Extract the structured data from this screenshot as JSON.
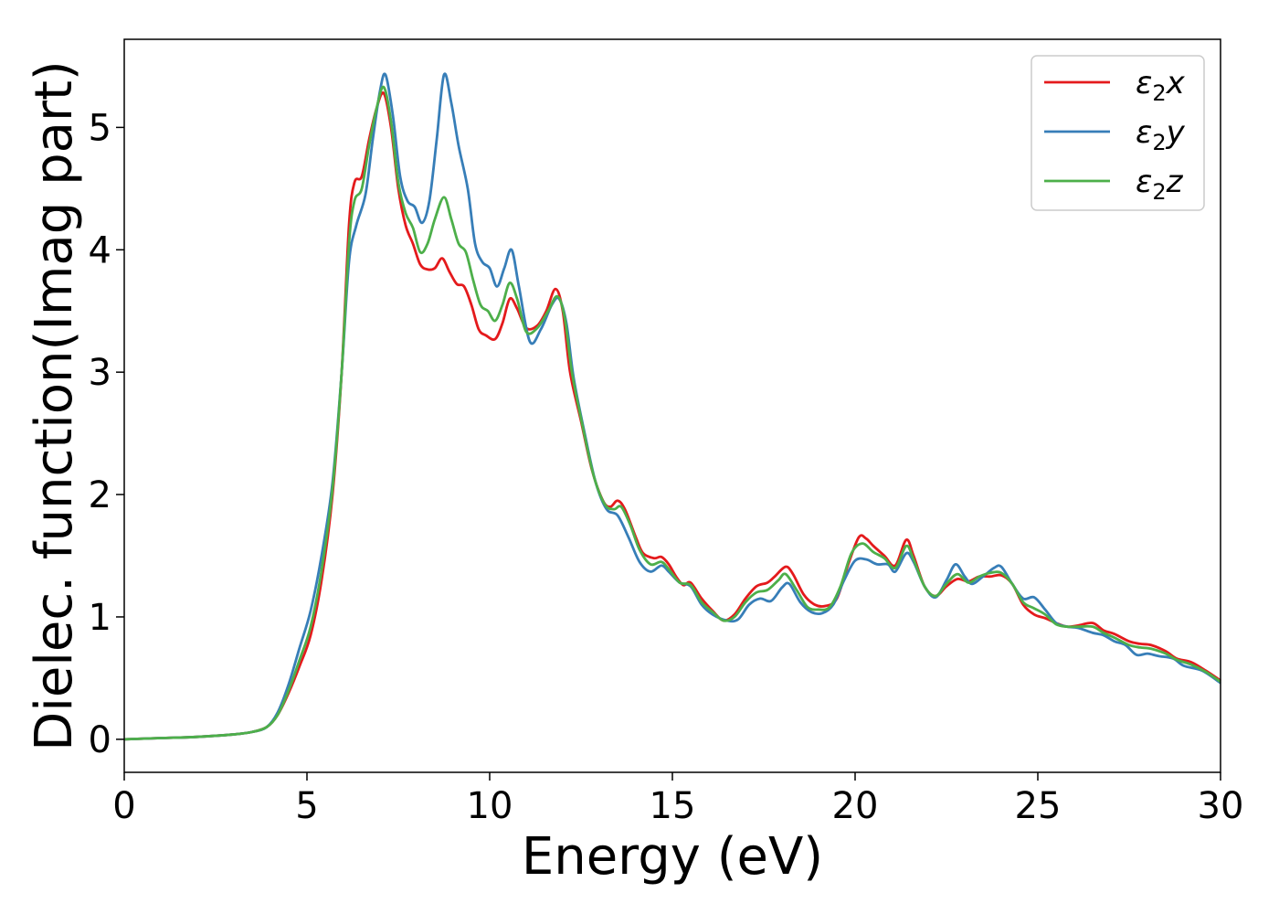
{
  "chart_data": {
    "type": "line",
    "xlabel": "Energy (eV)",
    "ylabel": "Dielec. function(Imag part)",
    "xlim": [
      0,
      30
    ],
    "ylim": [
      -0.27,
      5.72
    ],
    "xticks": [
      0,
      5,
      10,
      15,
      20,
      25,
      30
    ],
    "yticks": [
      0,
      1,
      2,
      3,
      4,
      5
    ],
    "grid": false,
    "legend_position": "top-right",
    "series": [
      {
        "name": "ε2x",
        "symbol": "ε",
        "sub": "2",
        "suffix": "x",
        "color": "#e41a1c",
        "points": [
          [
            0,
            0.0
          ],
          [
            1,
            0.01
          ],
          [
            2,
            0.02
          ],
          [
            3,
            0.04
          ],
          [
            3.5,
            0.06
          ],
          [
            3.9,
            0.1
          ],
          [
            4.2,
            0.2
          ],
          [
            4.5,
            0.38
          ],
          [
            4.8,
            0.6
          ],
          [
            5.1,
            0.85
          ],
          [
            5.4,
            1.3
          ],
          [
            5.7,
            2.0
          ],
          [
            5.95,
            3.0
          ],
          [
            6.15,
            4.2
          ],
          [
            6.3,
            4.55
          ],
          [
            6.5,
            4.6
          ],
          [
            6.7,
            4.9
          ],
          [
            6.9,
            5.15
          ],
          [
            7.1,
            5.28
          ],
          [
            7.3,
            5.0
          ],
          [
            7.5,
            4.5
          ],
          [
            7.7,
            4.2
          ],
          [
            7.9,
            4.05
          ],
          [
            8.1,
            3.88
          ],
          [
            8.3,
            3.84
          ],
          [
            8.5,
            3.85
          ],
          [
            8.7,
            3.93
          ],
          [
            8.9,
            3.82
          ],
          [
            9.1,
            3.72
          ],
          [
            9.3,
            3.7
          ],
          [
            9.5,
            3.55
          ],
          [
            9.7,
            3.35
          ],
          [
            9.9,
            3.3
          ],
          [
            10.15,
            3.27
          ],
          [
            10.35,
            3.4
          ],
          [
            10.55,
            3.6
          ],
          [
            10.75,
            3.52
          ],
          [
            11.0,
            3.36
          ],
          [
            11.3,
            3.38
          ],
          [
            11.55,
            3.5
          ],
          [
            11.8,
            3.68
          ],
          [
            12.0,
            3.5
          ],
          [
            12.2,
            3.0
          ],
          [
            12.5,
            2.6
          ],
          [
            12.8,
            2.2
          ],
          [
            13.1,
            1.95
          ],
          [
            13.3,
            1.9
          ],
          [
            13.5,
            1.95
          ],
          [
            13.7,
            1.88
          ],
          [
            14.0,
            1.65
          ],
          [
            14.2,
            1.52
          ],
          [
            14.5,
            1.48
          ],
          [
            14.7,
            1.49
          ],
          [
            14.9,
            1.43
          ],
          [
            15.1,
            1.33
          ],
          [
            15.3,
            1.26
          ],
          [
            15.5,
            1.28
          ],
          [
            15.8,
            1.15
          ],
          [
            16.1,
            1.05
          ],
          [
            16.4,
            0.97
          ],
          [
            16.7,
            1.02
          ],
          [
            17.0,
            1.15
          ],
          [
            17.3,
            1.25
          ],
          [
            17.6,
            1.28
          ],
          [
            17.8,
            1.33
          ],
          [
            18.1,
            1.41
          ],
          [
            18.3,
            1.35
          ],
          [
            18.6,
            1.18
          ],
          [
            18.9,
            1.1
          ],
          [
            19.2,
            1.09
          ],
          [
            19.5,
            1.15
          ],
          [
            19.8,
            1.42
          ],
          [
            20.1,
            1.65
          ],
          [
            20.3,
            1.64
          ],
          [
            20.5,
            1.58
          ],
          [
            20.8,
            1.5
          ],
          [
            21.1,
            1.42
          ],
          [
            21.4,
            1.63
          ],
          [
            21.6,
            1.5
          ],
          [
            21.9,
            1.25
          ],
          [
            22.2,
            1.17
          ],
          [
            22.5,
            1.25
          ],
          [
            22.8,
            1.31
          ],
          [
            23.1,
            1.29
          ],
          [
            23.4,
            1.33
          ],
          [
            23.7,
            1.33
          ],
          [
            24.0,
            1.34
          ],
          [
            24.3,
            1.27
          ],
          [
            24.6,
            1.1
          ],
          [
            24.9,
            1.02
          ],
          [
            25.2,
            0.99
          ],
          [
            25.5,
            0.95
          ],
          [
            25.8,
            0.92
          ],
          [
            26.1,
            0.93
          ],
          [
            26.5,
            0.95
          ],
          [
            26.8,
            0.89
          ],
          [
            27.1,
            0.86
          ],
          [
            27.5,
            0.8
          ],
          [
            27.8,
            0.78
          ],
          [
            28.1,
            0.77
          ],
          [
            28.5,
            0.72
          ],
          [
            28.8,
            0.66
          ],
          [
            29.2,
            0.63
          ],
          [
            29.6,
            0.56
          ],
          [
            30.0,
            0.48
          ]
        ]
      },
      {
        "name": "ε2y",
        "symbol": "ε",
        "sub": "2",
        "suffix": "y",
        "color": "#377eb8",
        "points": [
          [
            0,
            0.0
          ],
          [
            1,
            0.01
          ],
          [
            2,
            0.02
          ],
          [
            3,
            0.04
          ],
          [
            3.5,
            0.06
          ],
          [
            3.9,
            0.1
          ],
          [
            4.2,
            0.22
          ],
          [
            4.5,
            0.45
          ],
          [
            4.8,
            0.75
          ],
          [
            5.1,
            1.05
          ],
          [
            5.4,
            1.5
          ],
          [
            5.7,
            2.1
          ],
          [
            5.95,
            3.0
          ],
          [
            6.15,
            3.9
          ],
          [
            6.35,
            4.2
          ],
          [
            6.6,
            4.45
          ],
          [
            6.8,
            4.9
          ],
          [
            7.0,
            5.3
          ],
          [
            7.15,
            5.43
          ],
          [
            7.35,
            5.1
          ],
          [
            7.55,
            4.6
          ],
          [
            7.75,
            4.4
          ],
          [
            7.95,
            4.35
          ],
          [
            8.15,
            4.22
          ],
          [
            8.35,
            4.4
          ],
          [
            8.55,
            4.9
          ],
          [
            8.75,
            5.43
          ],
          [
            8.95,
            5.2
          ],
          [
            9.15,
            4.85
          ],
          [
            9.4,
            4.5
          ],
          [
            9.6,
            4.05
          ],
          [
            9.8,
            3.9
          ],
          [
            10.0,
            3.85
          ],
          [
            10.2,
            3.7
          ],
          [
            10.4,
            3.85
          ],
          [
            10.6,
            4.0
          ],
          [
            10.8,
            3.7
          ],
          [
            11.1,
            3.25
          ],
          [
            11.4,
            3.35
          ],
          [
            11.7,
            3.55
          ],
          [
            11.9,
            3.6
          ],
          [
            12.1,
            3.4
          ],
          [
            12.3,
            2.95
          ],
          [
            12.6,
            2.5
          ],
          [
            12.9,
            2.1
          ],
          [
            13.2,
            1.88
          ],
          [
            13.5,
            1.83
          ],
          [
            13.8,
            1.65
          ],
          [
            14.1,
            1.45
          ],
          [
            14.4,
            1.37
          ],
          [
            14.7,
            1.42
          ],
          [
            14.9,
            1.37
          ],
          [
            15.2,
            1.28
          ],
          [
            15.5,
            1.25
          ],
          [
            15.8,
            1.1
          ],
          [
            16.1,
            1.02
          ],
          [
            16.5,
            0.97
          ],
          [
            16.8,
            0.98
          ],
          [
            17.1,
            1.1
          ],
          [
            17.4,
            1.15
          ],
          [
            17.7,
            1.13
          ],
          [
            18.0,
            1.24
          ],
          [
            18.2,
            1.27
          ],
          [
            18.5,
            1.12
          ],
          [
            18.8,
            1.04
          ],
          [
            19.1,
            1.03
          ],
          [
            19.4,
            1.1
          ],
          [
            19.7,
            1.3
          ],
          [
            20.0,
            1.46
          ],
          [
            20.3,
            1.47
          ],
          [
            20.6,
            1.43
          ],
          [
            20.9,
            1.43
          ],
          [
            21.1,
            1.37
          ],
          [
            21.4,
            1.52
          ],
          [
            21.6,
            1.45
          ],
          [
            21.9,
            1.25
          ],
          [
            22.2,
            1.16
          ],
          [
            22.5,
            1.3
          ],
          [
            22.75,
            1.43
          ],
          [
            23.0,
            1.33
          ],
          [
            23.2,
            1.27
          ],
          [
            23.5,
            1.33
          ],
          [
            23.8,
            1.4
          ],
          [
            24.0,
            1.41
          ],
          [
            24.3,
            1.27
          ],
          [
            24.6,
            1.15
          ],
          [
            24.9,
            1.16
          ],
          [
            25.2,
            1.06
          ],
          [
            25.5,
            0.95
          ],
          [
            25.8,
            0.92
          ],
          [
            26.1,
            0.91
          ],
          [
            26.5,
            0.87
          ],
          [
            26.8,
            0.85
          ],
          [
            27.1,
            0.8
          ],
          [
            27.4,
            0.77
          ],
          [
            27.7,
            0.69
          ],
          [
            28.0,
            0.7
          ],
          [
            28.3,
            0.68
          ],
          [
            28.7,
            0.66
          ],
          [
            29.0,
            0.6
          ],
          [
            29.5,
            0.56
          ],
          [
            30.0,
            0.46
          ]
        ]
      },
      {
        "name": "ε2z",
        "symbol": "ε",
        "sub": "2",
        "suffix": "z",
        "color": "#4daf4a",
        "points": [
          [
            0,
            0.0
          ],
          [
            1,
            0.01
          ],
          [
            2,
            0.02
          ],
          [
            3,
            0.04
          ],
          [
            3.5,
            0.06
          ],
          [
            3.9,
            0.1
          ],
          [
            4.2,
            0.2
          ],
          [
            4.5,
            0.4
          ],
          [
            4.8,
            0.65
          ],
          [
            5.1,
            0.92
          ],
          [
            5.4,
            1.38
          ],
          [
            5.7,
            2.05
          ],
          [
            5.95,
            3.0
          ],
          [
            6.15,
            4.05
          ],
          [
            6.3,
            4.4
          ],
          [
            6.5,
            4.5
          ],
          [
            6.7,
            4.85
          ],
          [
            6.9,
            5.15
          ],
          [
            7.1,
            5.33
          ],
          [
            7.3,
            5.05
          ],
          [
            7.5,
            4.55
          ],
          [
            7.7,
            4.3
          ],
          [
            7.9,
            4.18
          ],
          [
            8.1,
            3.98
          ],
          [
            8.3,
            4.05
          ],
          [
            8.5,
            4.25
          ],
          [
            8.75,
            4.43
          ],
          [
            8.95,
            4.25
          ],
          [
            9.15,
            4.05
          ],
          [
            9.35,
            3.98
          ],
          [
            9.55,
            3.75
          ],
          [
            9.75,
            3.55
          ],
          [
            9.95,
            3.5
          ],
          [
            10.15,
            3.42
          ],
          [
            10.35,
            3.55
          ],
          [
            10.55,
            3.73
          ],
          [
            10.75,
            3.6
          ],
          [
            11.0,
            3.33
          ],
          [
            11.3,
            3.36
          ],
          [
            11.6,
            3.5
          ],
          [
            11.85,
            3.62
          ],
          [
            12.05,
            3.45
          ],
          [
            12.25,
            3.0
          ],
          [
            12.55,
            2.55
          ],
          [
            12.85,
            2.15
          ],
          [
            13.15,
            1.92
          ],
          [
            13.4,
            1.88
          ],
          [
            13.6,
            1.9
          ],
          [
            13.85,
            1.75
          ],
          [
            14.1,
            1.55
          ],
          [
            14.4,
            1.43
          ],
          [
            14.7,
            1.45
          ],
          [
            14.9,
            1.39
          ],
          [
            15.2,
            1.28
          ],
          [
            15.5,
            1.26
          ],
          [
            15.8,
            1.12
          ],
          [
            16.1,
            1.04
          ],
          [
            16.4,
            0.97
          ],
          [
            16.7,
            1.0
          ],
          [
            17.0,
            1.12
          ],
          [
            17.3,
            1.2
          ],
          [
            17.6,
            1.22
          ],
          [
            17.9,
            1.3
          ],
          [
            18.1,
            1.35
          ],
          [
            18.4,
            1.22
          ],
          [
            18.7,
            1.08
          ],
          [
            19.0,
            1.06
          ],
          [
            19.3,
            1.08
          ],
          [
            19.6,
            1.25
          ],
          [
            19.9,
            1.52
          ],
          [
            20.2,
            1.6
          ],
          [
            20.5,
            1.53
          ],
          [
            20.8,
            1.48
          ],
          [
            21.1,
            1.4
          ],
          [
            21.4,
            1.58
          ],
          [
            21.6,
            1.47
          ],
          [
            21.9,
            1.25
          ],
          [
            22.2,
            1.17
          ],
          [
            22.5,
            1.27
          ],
          [
            22.8,
            1.35
          ],
          [
            23.1,
            1.28
          ],
          [
            23.4,
            1.33
          ],
          [
            23.7,
            1.36
          ],
          [
            24.0,
            1.36
          ],
          [
            24.3,
            1.27
          ],
          [
            24.6,
            1.12
          ],
          [
            24.9,
            1.07
          ],
          [
            25.2,
            1.02
          ],
          [
            25.5,
            0.94
          ],
          [
            25.8,
            0.92
          ],
          [
            26.1,
            0.92
          ],
          [
            26.5,
            0.92
          ],
          [
            26.8,
            0.87
          ],
          [
            27.1,
            0.83
          ],
          [
            27.5,
            0.77
          ],
          [
            27.8,
            0.75
          ],
          [
            28.1,
            0.74
          ],
          [
            28.5,
            0.7
          ],
          [
            28.8,
            0.65
          ],
          [
            29.2,
            0.61
          ],
          [
            29.6,
            0.55
          ],
          [
            30.0,
            0.47
          ]
        ]
      }
    ]
  }
}
